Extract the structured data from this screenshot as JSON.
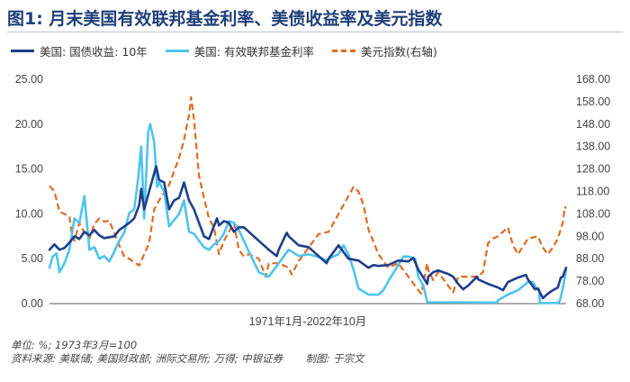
{
  "title": "图1: 月末美国有效联邦基金利率、美债收益率及美元指数",
  "legend": {
    "treasury": "美国: 国债收益: 10年",
    "fedfunds": "美国: 有效联邦基金利率",
    "dxy": "美元指数(右轴)"
  },
  "notes": {
    "unit": "单位: %; 1973年3月=100",
    "source": "资料来源: 美联储; 美国财政部; 洲际交易所; 万得; 中银证券",
    "author": "制图: 于宗文"
  },
  "colors": {
    "treasury": "#1f3f8a",
    "fedfunds": "#4fc3ec",
    "dxy": "#e06a22",
    "title": "#1f3f7a"
  },
  "chart_data": {
    "type": "line",
    "title": "图1: 月末美国有效联邦基金利率、美债收益率及美元指数",
    "xlabel": "1971年1月-2022年10月",
    "x_range": [
      1971.0,
      2022.83
    ],
    "ylim_left": [
      0,
      25
    ],
    "ylim_right": [
      68,
      168
    ],
    "yticks_left": [
      "25.00",
      "20.00",
      "15.00",
      "10.00",
      "5.00",
      "0.00"
    ],
    "yticks_right": [
      "168.00",
      "158.00",
      "148.00",
      "138.00",
      "128.00",
      "118.00",
      "108.00",
      "98.00",
      "88.00",
      "78.00",
      "68.00"
    ],
    "grid": false,
    "series": [
      {
        "name": "美国: 国债收益: 10年",
        "axis": "left",
        "style": "solid",
        "x": [
          1971.0,
          1971.5,
          1972.0,
          1972.5,
          1973.0,
          1973.5,
          1974.0,
          1974.5,
          1975.0,
          1975.5,
          1976.0,
          1976.5,
          1977.0,
          1977.5,
          1978.0,
          1978.5,
          1979.0,
          1979.5,
          1980.0,
          1980.2,
          1980.5,
          1981.0,
          1981.7,
          1982.0,
          1982.5,
          1983.0,
          1983.5,
          1984.0,
          1984.5,
          1985.0,
          1985.5,
          1986.0,
          1986.5,
          1987.0,
          1987.8,
          1988.0,
          1988.5,
          1989.0,
          1989.5,
          1990.0,
          1990.5,
          1991.0,
          1992.0,
          1993.0,
          1993.8,
          1994.0,
          1994.8,
          1995.0,
          1996.0,
          1997.0,
          1998.0,
          1998.8,
          1999.0,
          2000.0,
          2001.0,
          2002.0,
          2003.0,
          2003.5,
          2004.0,
          2005.0,
          2006.0,
          2007.0,
          2007.5,
          2008.0,
          2008.9,
          2009.0,
          2009.5,
          2010.0,
          2011.0,
          2011.5,
          2012.0,
          2012.5,
          2013.0,
          2013.9,
          2014.0,
          2015.0,
          2016.0,
          2016.5,
          2017.0,
          2018.0,
          2018.8,
          2019.0,
          2019.7,
          2020.0,
          2020.5,
          2021.0,
          2021.5,
          2022.0,
          2022.3,
          2022.5,
          2022.83
        ],
        "values": [
          6.0,
          6.6,
          6.0,
          6.2,
          6.8,
          7.5,
          7.2,
          8.0,
          7.6,
          8.2,
          7.6,
          7.3,
          7.4,
          7.5,
          8.2,
          8.6,
          9.0,
          9.5,
          11.0,
          12.8,
          10.5,
          12.5,
          15.3,
          13.8,
          13.5,
          10.5,
          11.5,
          11.8,
          13.5,
          11.5,
          10.5,
          9.0,
          7.5,
          7.2,
          9.5,
          8.7,
          9.2,
          9.0,
          8.0,
          8.5,
          8.5,
          8.0,
          7.0,
          6.0,
          5.3,
          6.0,
          7.9,
          7.5,
          6.5,
          6.3,
          5.3,
          4.5,
          5.0,
          6.5,
          5.0,
          4.8,
          4.0,
          4.3,
          4.2,
          4.3,
          4.8,
          4.7,
          5.1,
          3.8,
          2.2,
          3.0,
          3.5,
          3.7,
          3.3,
          3.0,
          2.2,
          1.6,
          2.0,
          3.0,
          2.7,
          2.2,
          1.8,
          1.5,
          2.4,
          2.9,
          3.2,
          2.7,
          1.6,
          1.7,
          0.6,
          1.1,
          1.5,
          1.8,
          2.9,
          3.0,
          4.0
        ]
      },
      {
        "name": "美国: 有效联邦基金利率",
        "axis": "left",
        "style": "solid",
        "x": [
          1971.0,
          1971.3,
          1971.7,
          1972.0,
          1972.5,
          1973.0,
          1973.5,
          1974.0,
          1974.5,
          1975.0,
          1975.5,
          1976.0,
          1976.5,
          1977.0,
          1977.5,
          1978.0,
          1978.5,
          1979.0,
          1979.5,
          1979.9,
          1980.2,
          1980.5,
          1980.9,
          1981.1,
          1981.5,
          1981.8,
          1982.0,
          1982.5,
          1983.0,
          1984.0,
          1984.5,
          1985.0,
          1985.5,
          1986.0,
          1986.5,
          1987.0,
          1987.5,
          1988.0,
          1988.5,
          1989.0,
          1989.5,
          1990.0,
          1991.0,
          1992.0,
          1993.0,
          1994.0,
          1995.0,
          1996.0,
          1997.0,
          1998.0,
          1998.8,
          1999.0,
          2000.0,
          2000.5,
          2001.0,
          2001.5,
          2002.0,
          2003.0,
          2004.0,
          2004.5,
          2005.0,
          2006.0,
          2006.5,
          2007.0,
          2007.7,
          2008.0,
          2008.5,
          2008.9,
          2009.0,
          2015.9,
          2016.0,
          2017.0,
          2018.0,
          2018.9,
          2019.0,
          2019.5,
          2019.9,
          2020.1,
          2020.2,
          2022.0,
          2022.2,
          2022.4,
          2022.6,
          2022.83
        ],
        "values": [
          4.0,
          5.2,
          5.6,
          3.5,
          4.5,
          6.0,
          9.5,
          9.0,
          12.0,
          6.0,
          6.3,
          5.0,
          5.3,
          4.7,
          5.8,
          7.0,
          7.9,
          10.1,
          10.5,
          14.0,
          17.5,
          9.5,
          19.1,
          20.0,
          18.0,
          13.0,
          13.5,
          12.5,
          8.6,
          10.0,
          11.5,
          8.0,
          7.8,
          7.0,
          6.3,
          6.0,
          6.6,
          7.0,
          7.8,
          9.2,
          9.0,
          8.2,
          5.8,
          3.5,
          3.0,
          4.5,
          6.0,
          5.3,
          5.5,
          5.2,
          4.8,
          5.0,
          5.5,
          6.5,
          5.5,
          3.8,
          1.7,
          1.0,
          1.0,
          1.5,
          2.5,
          4.3,
          5.25,
          5.25,
          5.0,
          3.0,
          2.0,
          0.2,
          0.15,
          0.12,
          0.37,
          1.0,
          1.5,
          2.3,
          2.4,
          2.4,
          1.6,
          1.55,
          0.05,
          0.08,
          0.3,
          1.2,
          2.3,
          3.8
        ]
      },
      {
        "name": "美元指数(右轴)",
        "axis": "right",
        "style": "dashed",
        "x": [
          1971.0,
          1971.5,
          1972.0,
          1973.0,
          1973.2,
          1973.5,
          1974.0,
          1974.5,
          1975.0,
          1975.5,
          1976.0,
          1976.5,
          1977.0,
          1978.0,
          1978.5,
          1979.0,
          1980.0,
          1981.0,
          1981.5,
          1982.0,
          1983.0,
          1984.0,
          1984.5,
          1985.0,
          1985.2,
          1985.5,
          1986.0,
          1986.5,
          1987.0,
          1987.5,
          1988.0,
          1988.5,
          1989.0,
          1989.5,
          1990.0,
          1990.5,
          1991.0,
          1992.0,
          1992.7,
          1993.0,
          1994.0,
          1995.0,
          1995.3,
          1996.0,
          1997.0,
          1998.0,
          1999.0,
          2000.0,
          2001.0,
          2001.5,
          2002.0,
          2002.5,
          2003.0,
          2004.0,
          2005.0,
          2006.0,
          2007.0,
          2008.0,
          2008.3,
          2008.9,
          2009.0,
          2009.5,
          2010.0,
          2011.0,
          2011.5,
          2012.0,
          2013.0,
          2014.0,
          2014.5,
          2015.0,
          2015.5,
          2016.0,
          2017.0,
          2017.5,
          2018.0,
          2019.0,
          2020.0,
          2020.5,
          2021.0,
          2021.5,
          2022.0,
          2022.5,
          2022.7,
          2022.83
        ],
        "values": [
          120.5,
          118.0,
          109.0,
          107.0,
          100.0,
          96.0,
          104.0,
          99.5,
          97.0,
          103.5,
          106.0,
          104.5,
          105.0,
          94.0,
          89.0,
          88.0,
          85.0,
          95.0,
          110.0,
          114.0,
          121.0,
          133.0,
          141.0,
          152.0,
          160.0,
          150.0,
          125.0,
          115.0,
          106.0,
          102.0,
          90.0,
          96.0,
          100.0,
          104.0,
          92.0,
          89.0,
          90.0,
          88.0,
          80.0,
          86.0,
          86.0,
          84.0,
          81.0,
          87.0,
          93.0,
          99.0,
          100.0,
          108.0,
          116.0,
          120.0,
          118.0,
          112.0,
          101.0,
          90.0,
          84.0,
          86.0,
          80.0,
          74.0,
          72.5,
          86.0,
          83.0,
          78.5,
          82.0,
          76.0,
          73.0,
          80.0,
          80.0,
          80.0,
          82.0,
          95.0,
          97.0,
          98.0,
          102.0,
          94.0,
          90.0,
          97.0,
          98.0,
          93.0,
          90.0,
          93.0,
          97.0,
          104.0,
          111.0,
          110.5
        ]
      }
    ]
  }
}
